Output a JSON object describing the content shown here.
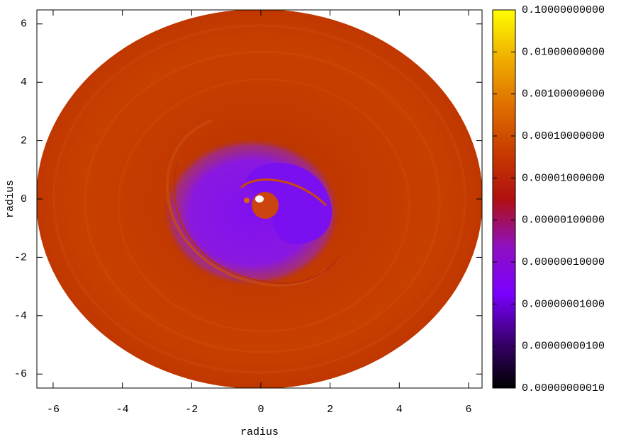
{
  "chart_data": {
    "type": "heatmap",
    "xlabel": "radius",
    "ylabel": "radius",
    "xlim": [
      -6.47,
      6.39
    ],
    "ylim": [
      -6.48,
      6.48
    ],
    "xticks": [
      -6,
      -4,
      -2,
      0,
      2,
      4,
      6
    ],
    "yticks": [
      -6,
      -4,
      -2,
      0,
      2,
      4,
      6
    ],
    "colorbar": {
      "log": true,
      "lim": [
        1e-10,
        0.1
      ],
      "palette": [
        "#000000",
        "#3a0070",
        "#7a00ff",
        "#9010c0",
        "#b01010",
        "#c83c00",
        "#e07000",
        "#f0b000",
        "#ffff00"
      ],
      "ticks": [
        {
          "value": 1e-10,
          "label": "0.00000000010"
        },
        {
          "value": 1e-09,
          "label": "0.00000000100"
        },
        {
          "value": 1e-08,
          "label": "0.00000001000"
        },
        {
          "value": 1e-07,
          "label": "0.00000010000"
        },
        {
          "value": 1e-06,
          "label": "0.00000100000"
        },
        {
          "value": 1e-05,
          "label": "0.00001000000"
        },
        {
          "value": 0.0001,
          "label": "0.00010000000"
        },
        {
          "value": 0.001,
          "label": "0.00100000000"
        },
        {
          "value": 0.01,
          "label": "0.01000000000"
        },
        {
          "value": 0.1,
          "label": "0.10000000000"
        }
      ]
    }
  }
}
